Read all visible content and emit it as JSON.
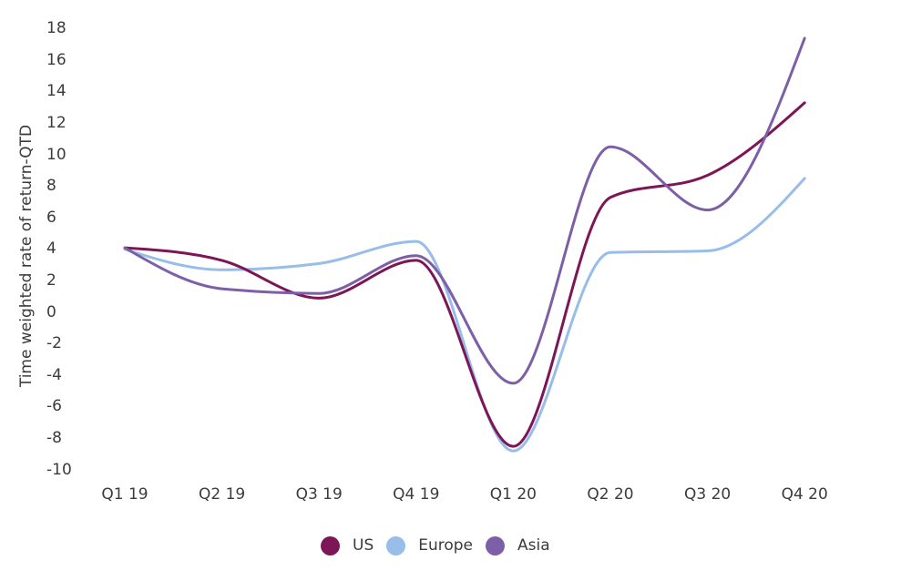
{
  "chart_data": {
    "type": "line",
    "smooth": "monotone",
    "title": "",
    "xlabel": "",
    "ylabel": "Time weighted rate of return-QTD",
    "ylim": [
      -10,
      18
    ],
    "y_ticks": [
      18,
      16,
      14,
      12,
      10,
      8,
      6,
      4,
      2,
      0,
      -2,
      -4,
      -6,
      -8,
      -10
    ],
    "grid": false,
    "legend_position": "bottom",
    "text_color": "#3b3b3b",
    "categories": [
      "Q1 19",
      "Q2 19",
      "Q3 19",
      "Q4 19",
      "Q1 20",
      "Q2 20",
      "Q3 20",
      "Q4 20"
    ],
    "series": [
      {
        "name": "US",
        "color": "#7C1656",
        "values": [
          4.1,
          3.3,
          0.9,
          3.3,
          -8.5,
          7.3,
          8.7,
          13.3
        ]
      },
      {
        "name": "Europe",
        "color": "#97BDE8",
        "values": [
          4.0,
          2.7,
          3.1,
          4.5,
          -8.8,
          3.8,
          3.9,
          8.5
        ]
      },
      {
        "name": "Asia",
        "color": "#7C5FA6",
        "values": [
          4.1,
          1.5,
          1.2,
          3.6,
          -4.5,
          10.5,
          6.5,
          17.4
        ]
      }
    ]
  }
}
